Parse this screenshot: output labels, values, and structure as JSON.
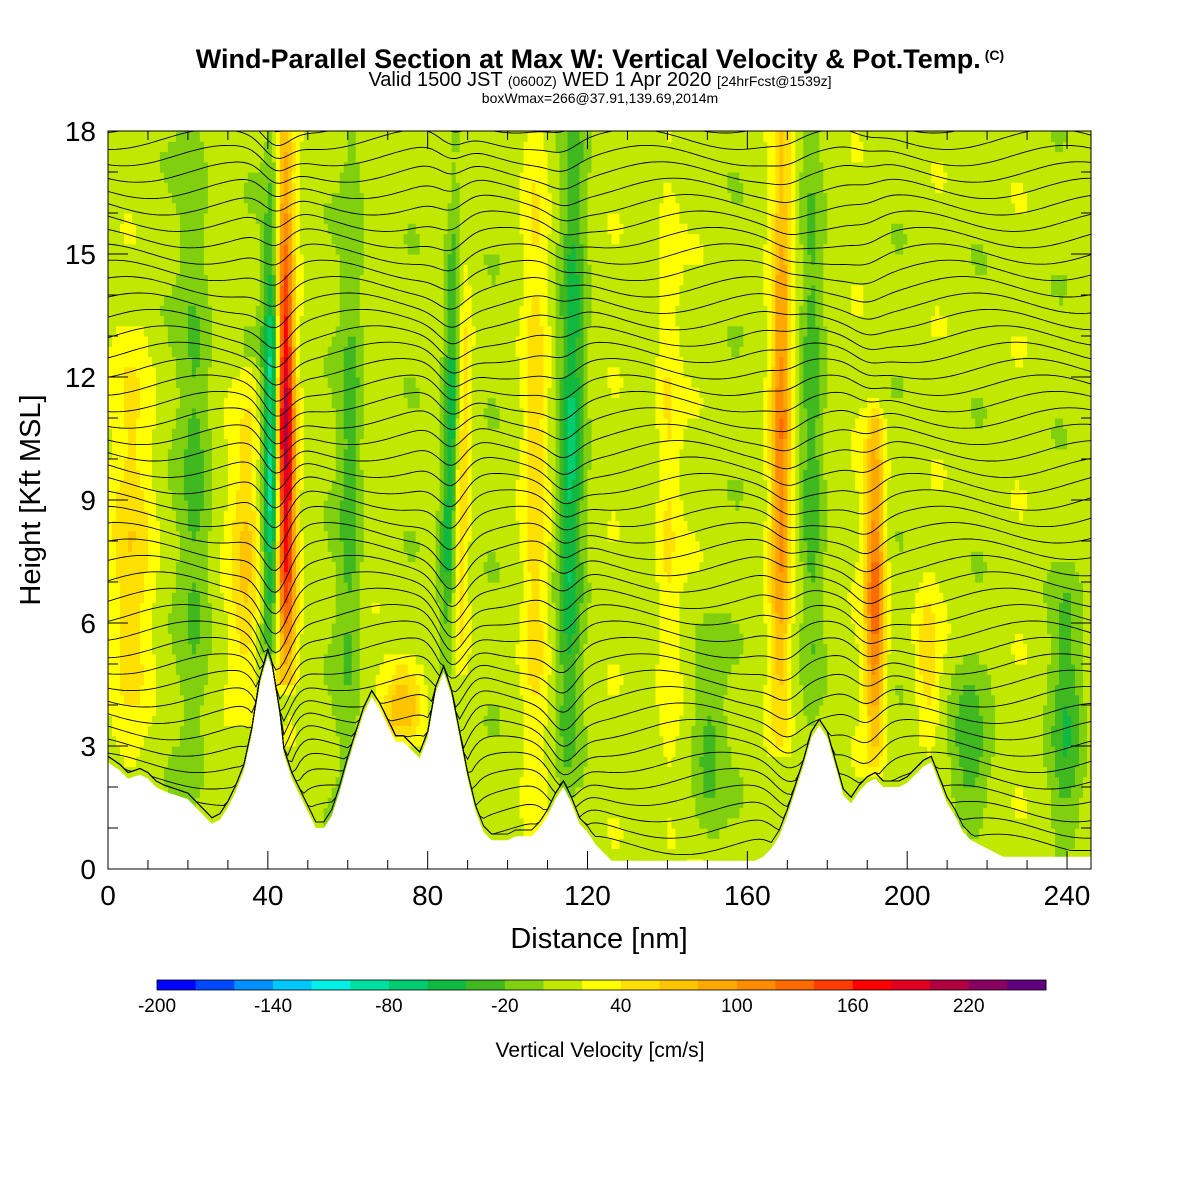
{
  "header": {
    "title": "Wind-Parallel Section at Max W: Vertical Velocity & Pot.Temp.",
    "title_mark": "(C)",
    "subtitle_prefix": "Valid 1500 JST",
    "subtitle_utc": "(0600Z)",
    "subtitle_date": "WED 1 Apr 2020",
    "subtitle_forecast": "[24hrFcst@1539z]",
    "subtitle_line2": "boxWmax=266@37.91,139.69,2014m"
  },
  "chart_data": {
    "type": "heatmap",
    "xlabel": "Distance [nm]",
    "ylabel": "Height [Kft MSL]",
    "xlim": [
      0,
      246
    ],
    "ylim": [
      0,
      18
    ],
    "x_ticks": [
      0,
      40,
      80,
      120,
      160,
      200,
      240
    ],
    "y_ticks": [
      0,
      3,
      6,
      9,
      12,
      15,
      18
    ],
    "x_minor_step": 10,
    "y_minor_step": 1,
    "colorbar": {
      "title": "Vertical Velocity [cm/s]",
      "labels": [
        "-200",
        "-140",
        "-80",
        "-20",
        "40",
        "100",
        "160",
        "220"
      ],
      "min": -200,
      "step": 20,
      "colors": [
        "#0000ff",
        "#0048ff",
        "#0090ff",
        "#00c8ff",
        "#00f0e8",
        "#00e0a0",
        "#00cc70",
        "#10b840",
        "#40b820",
        "#80d010",
        "#c0e800",
        "#ffff00",
        "#ffe000",
        "#ffc400",
        "#ffa800",
        "#ff8c00",
        "#ff6a00",
        "#ff3c00",
        "#ff0000",
        "#e00020",
        "#b00040",
        "#880060",
        "#600080"
      ]
    },
    "terrain": {
      "x": [
        0,
        3,
        5,
        8,
        10,
        12,
        14,
        17,
        20,
        24,
        26,
        28,
        30,
        32,
        34,
        36,
        38,
        40,
        41,
        42,
        43,
        44,
        46,
        48,
        50,
        52,
        54,
        56,
        58,
        60,
        62,
        64,
        66,
        68,
        70,
        72,
        74,
        76,
        78,
        80,
        82,
        84,
        86,
        88,
        90,
        92,
        94,
        96,
        98,
        100,
        102,
        104,
        106,
        108,
        110,
        112,
        114,
        116,
        118,
        120,
        122,
        124,
        126,
        128,
        130,
        134,
        138,
        142,
        146,
        150,
        154,
        158,
        162,
        164,
        166,
        168,
        170,
        172,
        174,
        176,
        178,
        180,
        182,
        184,
        186,
        188,
        190,
        192,
        194,
        196,
        198,
        200,
        202,
        204,
        206,
        208,
        210,
        212,
        214,
        216,
        218,
        220,
        224,
        228,
        232,
        236,
        240,
        246
      ],
      "height": [
        2.6,
        2.4,
        2.2,
        2.3,
        2.2,
        2.0,
        1.9,
        1.8,
        1.7,
        1.3,
        1.1,
        1.2,
        1.5,
        1.9,
        2.4,
        3.3,
        4.5,
        5.2,
        4.9,
        4.3,
        3.7,
        2.8,
        2.2,
        1.8,
        1.4,
        1.0,
        1.0,
        1.3,
        1.9,
        2.6,
        3.2,
        3.8,
        4.2,
        3.9,
        3.5,
        3.1,
        3.1,
        2.9,
        2.7,
        3.2,
        4.3,
        4.8,
        4.2,
        3.2,
        2.2,
        1.4,
        0.9,
        0.7,
        0.7,
        0.7,
        0.8,
        0.8,
        0.8,
        1.0,
        1.3,
        1.7,
        2.0,
        1.6,
        1.1,
        0.9,
        0.6,
        0.4,
        0.2,
        0.2,
        0.2,
        0.2,
        0.2,
        0.2,
        0.2,
        0.2,
        0.2,
        0.2,
        0.2,
        0.3,
        0.5,
        0.8,
        1.3,
        1.9,
        2.5,
        3.2,
        3.5,
        3.2,
        2.5,
        1.8,
        1.6,
        1.9,
        2.1,
        2.2,
        2.0,
        2.0,
        2.0,
        2.1,
        2.3,
        2.5,
        2.6,
        2.1,
        1.6,
        1.3,
        0.9,
        0.7,
        0.6,
        0.5,
        0.3,
        0.3,
        0.3,
        0.3,
        0.3,
        0.3
      ]
    },
    "velocity_features": [
      {
        "x": 41,
        "half_width": 2.5,
        "bottom": 5.2,
        "top": 18,
        "peak": -160,
        "lean": 0.1
      },
      {
        "x": 44.5,
        "half_width": 2.5,
        "bottom": 4.6,
        "top": 18,
        "peak": 240,
        "lean": -0.08
      },
      {
        "x": 34,
        "half_width": 4,
        "bottom": 3.5,
        "top": 12,
        "peak": 60,
        "lean": 0.1
      },
      {
        "x": 85,
        "half_width": 2.5,
        "bottom": 4.8,
        "top": 18,
        "peak": -110,
        "lean": 0.25
      },
      {
        "x": 87.5,
        "half_width": 2.2,
        "bottom": 4.8,
        "top": 18,
        "peak": 90,
        "lean": 0.1
      },
      {
        "x": 115,
        "half_width": 3,
        "bottom": 2,
        "top": 18,
        "peak": -70,
        "lean": 0.1
      },
      {
        "x": 107,
        "half_width": 3,
        "bottom": 1,
        "top": 18,
        "peak": 40,
        "lean": 0
      },
      {
        "x": 74,
        "half_width": 5,
        "bottom": 3,
        "top": 5,
        "peak": 80,
        "lean": 0
      },
      {
        "x": 168,
        "half_width": 2.5,
        "bottom": 3,
        "top": 18,
        "peak": 100,
        "lean": 0.05
      },
      {
        "x": 176,
        "half_width": 2.5,
        "bottom": 3.5,
        "top": 18,
        "peak": -40,
        "lean": 0
      },
      {
        "x": 192,
        "half_width": 2.5,
        "bottom": 2.5,
        "top": 11,
        "peak": 120,
        "lean": 0
      },
      {
        "x": 6,
        "half_width": 6,
        "bottom": 2.5,
        "top": 13,
        "peak": 40,
        "lean": 0
      },
      {
        "x": 22,
        "half_width": 4,
        "bottom": 1.5,
        "top": 18,
        "peak": -40,
        "lean": 0
      },
      {
        "x": 60,
        "half_width": 3,
        "bottom": 1.5,
        "top": 18,
        "peak": -40,
        "lean": 0.1
      },
      {
        "x": 140,
        "half_width": 3,
        "bottom": 0.5,
        "top": 18,
        "peak": 35,
        "lean": 0
      },
      {
        "x": 150,
        "half_width": 4,
        "bottom": 0.5,
        "top": 6,
        "peak": -40,
        "lean": 0
      },
      {
        "x": 240,
        "half_width": 4,
        "bottom": 0.5,
        "top": 7,
        "peak": -45,
        "lean": 0
      },
      {
        "x": 215,
        "half_width": 5,
        "bottom": 1,
        "top": 5,
        "peak": -40,
        "lean": 0
      },
      {
        "x": 205,
        "half_width": 3,
        "bottom": 3,
        "top": 7,
        "peak": 40,
        "lean": 0
      }
    ],
    "isentropes": {
      "count": 46,
      "base_spacing_kft": 0.4,
      "wave_centers": [
        42,
        86,
        114,
        170,
        190
      ],
      "wave_amplitude_kft": [
        1.6,
        1.2,
        0.7,
        0.4,
        0.5
      ]
    }
  }
}
